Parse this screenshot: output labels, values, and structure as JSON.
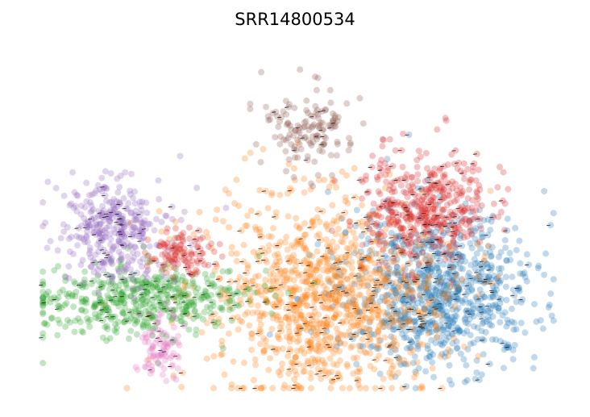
{
  "chart_data": {
    "type": "scatter",
    "title": "SRR14800534",
    "xlabel": "",
    "ylabel": "",
    "axes_visible": false,
    "grid": false,
    "legend": "none",
    "overlay": "velocity-arrows",
    "clusters": [
      {
        "id": "c0",
        "color": "#1f77b4",
        "center": [
          0.76,
          0.7
        ],
        "spread": [
          0.09,
          0.11
        ],
        "count": 900
      },
      {
        "id": "c1",
        "color": "#ff7f0e",
        "center": [
          0.55,
          0.72
        ],
        "spread": [
          0.11,
          0.14
        ],
        "count": 1100
      },
      {
        "id": "c2",
        "color": "#2ca02c",
        "center": [
          0.2,
          0.73
        ],
        "spread": [
          0.1,
          0.05
        ],
        "count": 500
      },
      {
        "id": "c3",
        "color": "#d62728",
        "center": [
          0.74,
          0.46
        ],
        "spread": [
          0.06,
          0.08
        ],
        "count": 450
      },
      {
        "id": "c4",
        "color": "#9467bd",
        "center": [
          0.15,
          0.53
        ],
        "spread": [
          0.05,
          0.07
        ],
        "count": 350
      },
      {
        "id": "c5",
        "color": "#8c564b",
        "center": [
          0.52,
          0.24
        ],
        "spread": [
          0.04,
          0.06
        ],
        "count": 140
      },
      {
        "id": "c6",
        "color": "#e377c2",
        "center": [
          0.24,
          0.86
        ],
        "spread": [
          0.02,
          0.05
        ],
        "count": 90
      },
      {
        "id": "c7",
        "color": "#d62728",
        "center": [
          0.28,
          0.59
        ],
        "spread": [
          0.03,
          0.03
        ],
        "count": 110
      }
    ]
  }
}
